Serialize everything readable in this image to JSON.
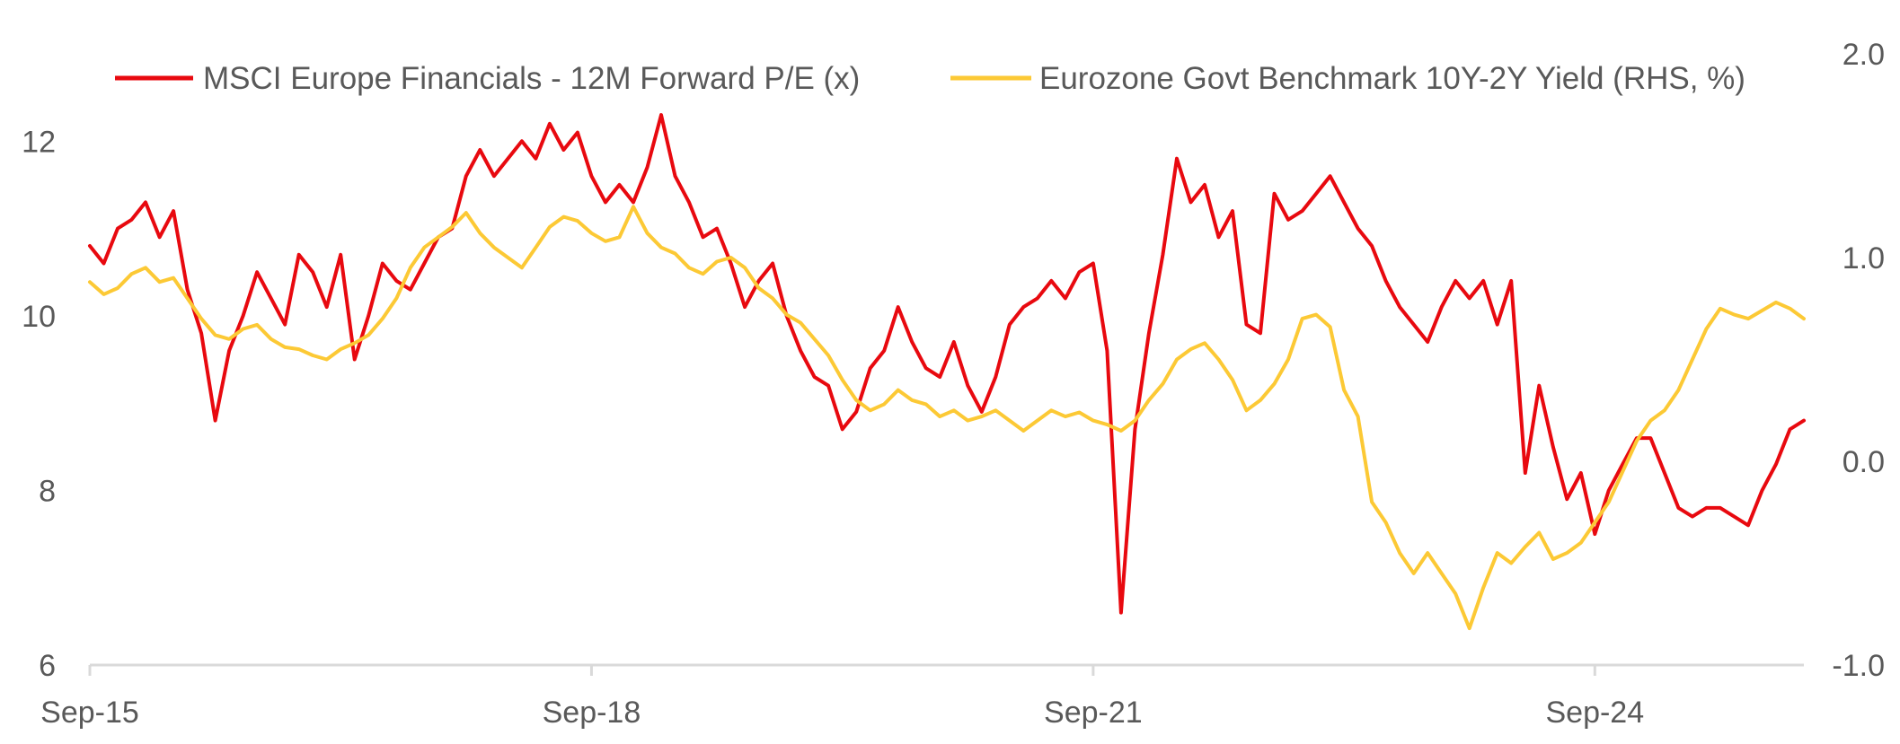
{
  "chart_data": {
    "type": "line",
    "title": "",
    "x_start": "Sep-15",
    "x_end": "Dec-25",
    "x_ticks": [
      "Sep-15",
      "Sep-18",
      "Sep-21",
      "Sep-24"
    ],
    "y_left": {
      "ticks": [
        "6",
        "8",
        "10",
        "12"
      ],
      "lim": [
        6,
        13
      ]
    },
    "y_right": {
      "ticks": [
        "-1.0",
        "0.0",
        "1.0",
        "2.0"
      ],
      "lim": [
        -1.0,
        2.0
      ]
    },
    "legend_position": "top",
    "grid": false,
    "series": [
      {
        "name": "MSCI Europe Financials - 12M Forward P/E (x)",
        "axis": "left",
        "color": "#e8090f",
        "values": [
          [
            "2015-09",
            10.8
          ],
          [
            "2015-10",
            10.6
          ],
          [
            "2015-11",
            11.0
          ],
          [
            "2015-12",
            11.1
          ],
          [
            "2016-01",
            11.3
          ],
          [
            "2016-02",
            10.9
          ],
          [
            "2016-03",
            11.2
          ],
          [
            "2016-04",
            10.3
          ],
          [
            "2016-05",
            9.8
          ],
          [
            "2016-06",
            8.8
          ],
          [
            "2016-07",
            9.6
          ],
          [
            "2016-08",
            10.0
          ],
          [
            "2016-09",
            10.5
          ],
          [
            "2016-10",
            10.2
          ],
          [
            "2016-11",
            9.9
          ],
          [
            "2016-12",
            10.7
          ],
          [
            "2017-01",
            10.5
          ],
          [
            "2017-02",
            10.1
          ],
          [
            "2017-03",
            10.7
          ],
          [
            "2017-04",
            9.5
          ],
          [
            "2017-05",
            10.0
          ],
          [
            "2017-06",
            10.6
          ],
          [
            "2017-07",
            10.4
          ],
          [
            "2017-08",
            10.3
          ],
          [
            "2017-09",
            10.6
          ],
          [
            "2017-10",
            10.9
          ],
          [
            "2017-11",
            11.0
          ],
          [
            "2017-12",
            11.6
          ],
          [
            "2018-01",
            11.9
          ],
          [
            "2018-02",
            11.6
          ],
          [
            "2018-03",
            11.8
          ],
          [
            "2018-04",
            12.0
          ],
          [
            "2018-05",
            11.8
          ],
          [
            "2018-06",
            12.2
          ],
          [
            "2018-07",
            11.9
          ],
          [
            "2018-08",
            12.1
          ],
          [
            "2018-09",
            11.6
          ],
          [
            "2018-10",
            11.3
          ],
          [
            "2018-11",
            11.5
          ],
          [
            "2018-12",
            11.3
          ],
          [
            "2019-01",
            11.7
          ],
          [
            "2019-02",
            12.3
          ],
          [
            "2019-03",
            11.6
          ],
          [
            "2019-04",
            11.3
          ],
          [
            "2019-05",
            10.9
          ],
          [
            "2019-06",
            11.0
          ],
          [
            "2019-07",
            10.6
          ],
          [
            "2019-08",
            10.1
          ],
          [
            "2019-09",
            10.4
          ],
          [
            "2019-10",
            10.6
          ],
          [
            "2019-11",
            10.0
          ],
          [
            "2019-12",
            9.6
          ],
          [
            "2020-01",
            9.3
          ],
          [
            "2020-02",
            9.2
          ],
          [
            "2020-03",
            8.7
          ],
          [
            "2020-04",
            8.9
          ],
          [
            "2020-05",
            9.4
          ],
          [
            "2020-06",
            9.6
          ],
          [
            "2020-07",
            10.1
          ],
          [
            "2020-08",
            9.7
          ],
          [
            "2020-09",
            9.4
          ],
          [
            "2020-10",
            9.3
          ],
          [
            "2020-11",
            9.7
          ],
          [
            "2020-12",
            9.2
          ],
          [
            "2021-01",
            8.9
          ],
          [
            "2021-02",
            9.3
          ],
          [
            "2021-03",
            9.9
          ],
          [
            "2021-04",
            10.1
          ],
          [
            "2021-05",
            10.2
          ],
          [
            "2021-06",
            10.4
          ],
          [
            "2021-07",
            10.2
          ],
          [
            "2021-08",
            10.5
          ],
          [
            "2021-09",
            10.6
          ],
          [
            "2021-10",
            9.6
          ],
          [
            "2021-11",
            6.6
          ],
          [
            "2021-12",
            8.7
          ],
          [
            "2022-01",
            9.8
          ],
          [
            "2022-02",
            10.7
          ],
          [
            "2022-03",
            11.8
          ],
          [
            "2022-04",
            11.3
          ],
          [
            "2022-05",
            11.5
          ],
          [
            "2022-06",
            10.9
          ],
          [
            "2022-07",
            11.2
          ],
          [
            "2022-08",
            9.9
          ],
          [
            "2022-09",
            9.8
          ],
          [
            "2022-10",
            11.4
          ],
          [
            "2022-11",
            11.1
          ],
          [
            "2022-12",
            11.2
          ],
          [
            "2023-01",
            11.4
          ],
          [
            "2023-02",
            11.6
          ],
          [
            "2023-03",
            11.3
          ],
          [
            "2023-04",
            11.0
          ],
          [
            "2023-05",
            10.8
          ],
          [
            "2023-06",
            10.4
          ],
          [
            "2023-07",
            10.1
          ],
          [
            "2023-08",
            9.9
          ],
          [
            "2023-09",
            9.7
          ],
          [
            "2023-10",
            10.1
          ],
          [
            "2023-11",
            10.4
          ],
          [
            "2023-12",
            10.2
          ],
          [
            "2024-01",
            10.4
          ],
          [
            "2024-02",
            9.9
          ],
          [
            "2024-03",
            10.4
          ],
          [
            "2024-04",
            8.2
          ],
          [
            "2024-05",
            9.2
          ],
          [
            "2024-06",
            8.5
          ],
          [
            "2024-07",
            7.9
          ],
          [
            "2024-08",
            8.2
          ],
          [
            "2024-09",
            7.5
          ],
          [
            "2024-10",
            8.0
          ],
          [
            "2024-11",
            8.3
          ],
          [
            "2024-12",
            8.6
          ],
          [
            "2025-01",
            8.6
          ],
          [
            "2025-02",
            8.2
          ],
          [
            "2025-03",
            7.8
          ],
          [
            "2025-04",
            7.7
          ],
          [
            "2025-05",
            7.8
          ],
          [
            "2025-06",
            7.8
          ],
          [
            "2025-07",
            7.7
          ],
          [
            "2025-08",
            7.6
          ],
          [
            "2025-09",
            8.0
          ],
          [
            "2025-10",
            8.3
          ],
          [
            "2025-11",
            8.7
          ],
          [
            "2025-12",
            8.8
          ]
        ]
      },
      {
        "name": "Eurozone Govt Benchmark 10Y-2Y Yield (RHS, %)",
        "axis": "right",
        "color": "#fcc935",
        "values": [
          [
            "2015-09",
            0.88
          ],
          [
            "2015-10",
            0.82
          ],
          [
            "2015-11",
            0.85
          ],
          [
            "2015-12",
            0.92
          ],
          [
            "2016-01",
            0.95
          ],
          [
            "2016-02",
            0.88
          ],
          [
            "2016-03",
            0.9
          ],
          [
            "2016-04",
            0.8
          ],
          [
            "2016-05",
            0.7
          ],
          [
            "2016-06",
            0.62
          ],
          [
            "2016-07",
            0.6
          ],
          [
            "2016-08",
            0.65
          ],
          [
            "2016-09",
            0.67
          ],
          [
            "2016-10",
            0.6
          ],
          [
            "2016-11",
            0.56
          ],
          [
            "2016-12",
            0.55
          ],
          [
            "2017-01",
            0.52
          ],
          [
            "2017-02",
            0.5
          ],
          [
            "2017-03",
            0.55
          ],
          [
            "2017-04",
            0.58
          ],
          [
            "2017-05",
            0.62
          ],
          [
            "2017-06",
            0.7
          ],
          [
            "2017-07",
            0.8
          ],
          [
            "2017-08",
            0.95
          ],
          [
            "2017-09",
            1.05
          ],
          [
            "2017-10",
            1.1
          ],
          [
            "2017-11",
            1.15
          ],
          [
            "2017-12",
            1.22
          ],
          [
            "2018-01",
            1.12
          ],
          [
            "2018-02",
            1.05
          ],
          [
            "2018-03",
            1.0
          ],
          [
            "2018-04",
            0.95
          ],
          [
            "2018-05",
            1.05
          ],
          [
            "2018-06",
            1.15
          ],
          [
            "2018-07",
            1.2
          ],
          [
            "2018-08",
            1.18
          ],
          [
            "2018-09",
            1.12
          ],
          [
            "2018-10",
            1.08
          ],
          [
            "2018-11",
            1.1
          ],
          [
            "2018-12",
            1.25
          ],
          [
            "2019-01",
            1.12
          ],
          [
            "2019-02",
            1.05
          ],
          [
            "2019-03",
            1.02
          ],
          [
            "2019-04",
            0.95
          ],
          [
            "2019-05",
            0.92
          ],
          [
            "2019-06",
            0.98
          ],
          [
            "2019-07",
            1.0
          ],
          [
            "2019-08",
            0.95
          ],
          [
            "2019-09",
            0.85
          ],
          [
            "2019-10",
            0.8
          ],
          [
            "2019-11",
            0.72
          ],
          [
            "2019-12",
            0.68
          ],
          [
            "2020-01",
            0.6
          ],
          [
            "2020-02",
            0.52
          ],
          [
            "2020-03",
            0.4
          ],
          [
            "2020-04",
            0.3
          ],
          [
            "2020-05",
            0.25
          ],
          [
            "2020-06",
            0.28
          ],
          [
            "2020-07",
            0.35
          ],
          [
            "2020-08",
            0.3
          ],
          [
            "2020-09",
            0.28
          ],
          [
            "2020-10",
            0.22
          ],
          [
            "2020-11",
            0.25
          ],
          [
            "2020-12",
            0.2
          ],
          [
            "2021-01",
            0.22
          ],
          [
            "2021-02",
            0.25
          ],
          [
            "2021-03",
            0.2
          ],
          [
            "2021-04",
            0.15
          ],
          [
            "2021-05",
            0.2
          ],
          [
            "2021-06",
            0.25
          ],
          [
            "2021-07",
            0.22
          ],
          [
            "2021-08",
            0.24
          ],
          [
            "2021-09",
            0.2
          ],
          [
            "2021-10",
            0.18
          ],
          [
            "2021-11",
            0.15
          ],
          [
            "2021-12",
            0.2
          ],
          [
            "2022-01",
            0.3
          ],
          [
            "2022-02",
            0.38
          ],
          [
            "2022-03",
            0.5
          ],
          [
            "2022-04",
            0.55
          ],
          [
            "2022-05",
            0.58
          ],
          [
            "2022-06",
            0.5
          ],
          [
            "2022-07",
            0.4
          ],
          [
            "2022-08",
            0.25
          ],
          [
            "2022-09",
            0.3
          ],
          [
            "2022-10",
            0.38
          ],
          [
            "2022-11",
            0.5
          ],
          [
            "2022-12",
            0.7
          ],
          [
            "2023-01",
            0.72
          ],
          [
            "2023-02",
            0.66
          ],
          [
            "2023-03",
            0.35
          ],
          [
            "2023-04",
            0.22
          ],
          [
            "2023-05",
            -0.2
          ],
          [
            "2023-06",
            -0.3
          ],
          [
            "2023-07",
            -0.45
          ],
          [
            "2023-08",
            -0.55
          ],
          [
            "2023-09",
            -0.45
          ],
          [
            "2023-10",
            -0.55
          ],
          [
            "2023-11",
            -0.65
          ],
          [
            "2023-12",
            -0.82
          ],
          [
            "2024-01",
            -0.62
          ],
          [
            "2024-02",
            -0.45
          ],
          [
            "2024-03",
            -0.5
          ],
          [
            "2024-04",
            -0.42
          ],
          [
            "2024-05",
            -0.35
          ],
          [
            "2024-06",
            -0.48
          ],
          [
            "2024-07",
            -0.45
          ],
          [
            "2024-08",
            -0.4
          ],
          [
            "2024-09",
            -0.3
          ],
          [
            "2024-10",
            -0.2
          ],
          [
            "2024-11",
            -0.05
          ],
          [
            "2024-12",
            0.1
          ],
          [
            "2025-01",
            0.2
          ],
          [
            "2025-02",
            0.25
          ],
          [
            "2025-03",
            0.35
          ],
          [
            "2025-04",
            0.5
          ],
          [
            "2025-05",
            0.65
          ],
          [
            "2025-06",
            0.75
          ],
          [
            "2025-07",
            0.72
          ],
          [
            "2025-08",
            0.7
          ],
          [
            "2025-09",
            0.74
          ],
          [
            "2025-10",
            0.78
          ],
          [
            "2025-11",
            0.75
          ],
          [
            "2025-12",
            0.7
          ]
        ]
      }
    ]
  }
}
